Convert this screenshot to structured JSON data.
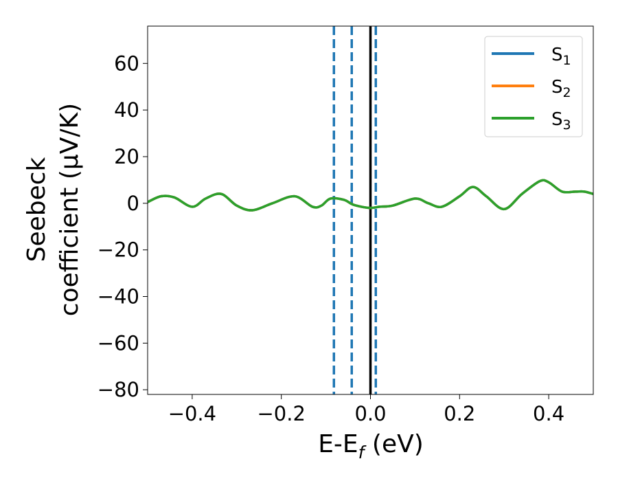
{
  "chart_data": {
    "type": "line",
    "xlabel": "E-E",
    "xlabel_sub": "f",
    "xlabel_unit": " (eV)",
    "ylabel_line1": "Seebeck",
    "ylabel_line2": "coefficient  (μV/K)",
    "xlim": [
      -0.5,
      0.5
    ],
    "ylim": [
      -82,
      76
    ],
    "x_ticks": [
      -0.4,
      -0.2,
      0.0,
      0.2,
      0.4
    ],
    "x_tick_labels": [
      "−0.4",
      "−0.2",
      "0.0",
      "0.2",
      "0.4"
    ],
    "y_ticks": [
      60,
      40,
      20,
      0,
      -20,
      -40,
      -60,
      -80
    ],
    "y_tick_labels": [
      "60",
      "40",
      "20",
      "0",
      "−20",
      "−40",
      "−60",
      "−80"
    ],
    "grid": false,
    "legend_position": "top-right",
    "x": [
      -0.5,
      -0.47,
      -0.44,
      -0.4,
      -0.37,
      -0.335,
      -0.3,
      -0.265,
      -0.22,
      -0.17,
      -0.13,
      -0.11,
      -0.09,
      -0.06,
      -0.04,
      -0.02,
      0.0,
      0.02,
      0.05,
      0.1,
      0.13,
      0.16,
      0.2,
      0.23,
      0.26,
      0.3,
      0.34,
      0.38,
      0.4,
      0.43,
      0.46,
      0.48,
      0.5
    ],
    "series": [
      {
        "name": "S",
        "sub": "1",
        "color": "#1f77b4",
        "values": [
          0.5,
          3,
          2.5,
          -1.5,
          2,
          4,
          -1,
          -3,
          0,
          3,
          -1.5,
          -1,
          2,
          1.5,
          -0.5,
          -1.5,
          -2,
          -1.5,
          -1,
          2,
          0,
          -1.5,
          3,
          7,
          3,
          -2.5,
          4,
          9.5,
          9,
          5,
          5,
          5,
          4
        ]
      },
      {
        "name": "S",
        "sub": "2",
        "color": "#ff7f0e",
        "values": [
          0.5,
          3,
          2.5,
          -1.5,
          2,
          4,
          -1,
          -3,
          0,
          3,
          -1.5,
          -1,
          2,
          1.5,
          -0.5,
          -1.5,
          -2,
          -1.5,
          -1,
          2,
          0,
          -1.5,
          3,
          7,
          3,
          -2.5,
          4,
          9.5,
          9,
          5,
          5,
          5,
          4
        ]
      },
      {
        "name": "S",
        "sub": "3",
        "color": "#2ca02c",
        "values": [
          0.5,
          3,
          2.5,
          -1.5,
          2,
          4,
          -1,
          -3,
          0,
          3,
          -1.5,
          -1,
          2,
          1.5,
          -0.5,
          -1.5,
          -2,
          -1.5,
          -1,
          2,
          0,
          -1.5,
          3,
          7,
          3,
          -2.5,
          4,
          9.5,
          9,
          5,
          5,
          5,
          4
        ]
      }
    ],
    "vertical_lines": [
      {
        "x": -0.082,
        "style": "dashed",
        "color": "#1f77b4"
      },
      {
        "x": -0.042,
        "style": "dashed",
        "color": "#1f77b4"
      },
      {
        "x": 0.0,
        "style": "solid",
        "color": "#000000"
      },
      {
        "x": 0.012,
        "style": "dashed",
        "color": "#1f77b4"
      }
    ]
  }
}
